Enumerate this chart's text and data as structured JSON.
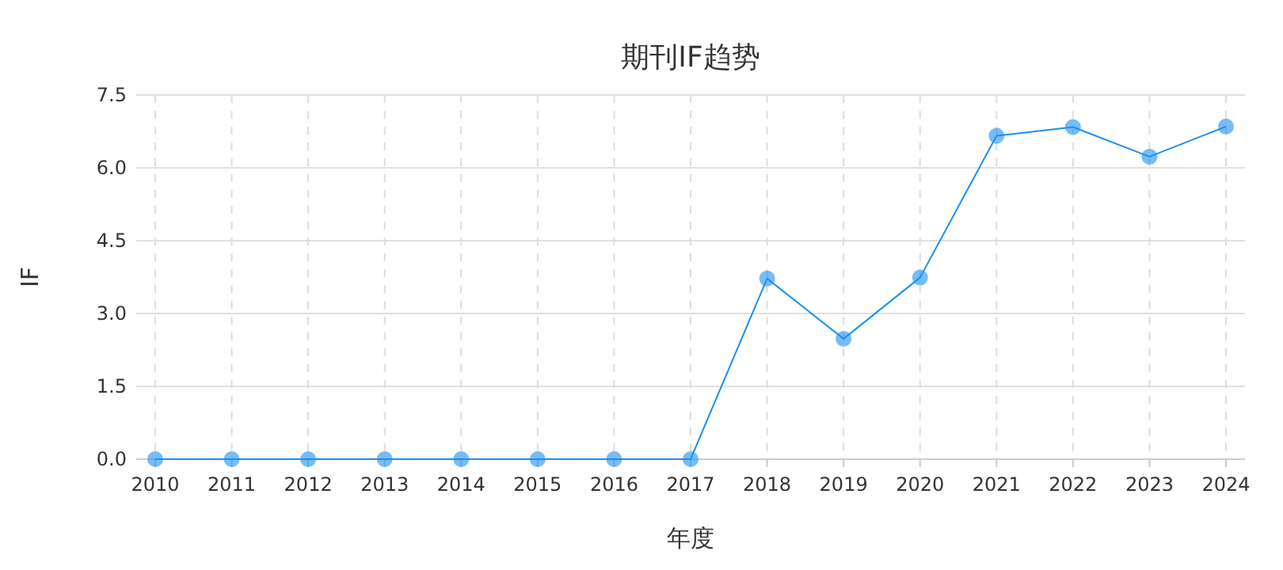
{
  "chart_data": {
    "type": "line",
    "title": "期刊IF趋势",
    "xlabel": "年度",
    "ylabel": "IF",
    "categories": [
      "2010",
      "2011",
      "2012",
      "2013",
      "2014",
      "2015",
      "2016",
      "2017",
      "2018",
      "2019",
      "2020",
      "2021",
      "2022",
      "2023",
      "2024"
    ],
    "series": [
      {
        "color": "#1a90f0",
        "values": [
          0,
          0,
          0,
          0,
          0,
          0,
          0,
          0,
          3.72,
          2.48,
          3.74,
          6.66,
          6.84,
          6.23,
          6.85
        ]
      }
    ],
    "ylim": [
      0,
      7.5
    ],
    "yticks": [
      {
        "value": 0,
        "label": "0.0"
      },
      1.5,
      {
        "value": 3,
        "label": "3.0"
      },
      4.5,
      {
        "value": 6,
        "label": "6.0"
      },
      7.5
    ],
    "grid": true,
    "marker": "circle",
    "line_style": "solid"
  }
}
